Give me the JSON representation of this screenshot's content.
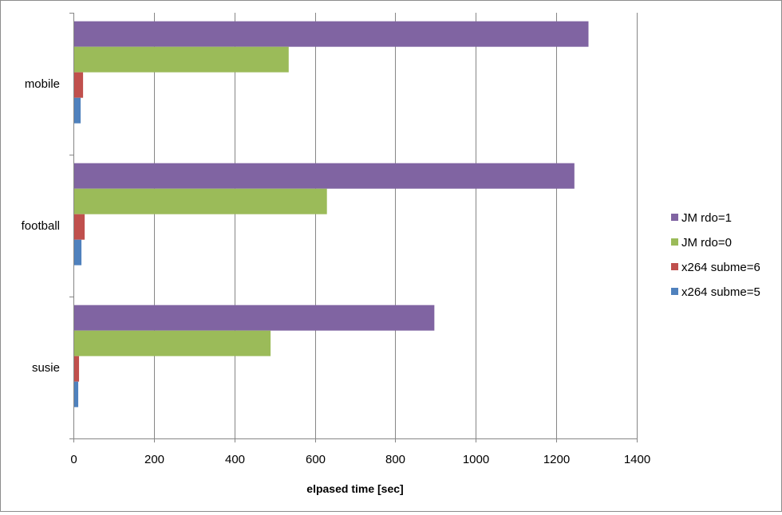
{
  "chart_data": {
    "type": "bar",
    "orientation": "horizontal",
    "categories": [
      "mobile",
      "football",
      "susie"
    ],
    "series": [
      {
        "name": "JM rdo=1",
        "color": "#8064a2",
        "values": [
          1280,
          1245,
          897
        ]
      },
      {
        "name": "JM rdo=0",
        "color": "#9bbb59",
        "values": [
          535,
          630,
          490
        ]
      },
      {
        "name": "x264 subme=6",
        "color": "#c0504d",
        "values": [
          24,
          28,
          14
        ]
      },
      {
        "name": "x264 subme=5",
        "color": "#4f81bd",
        "values": [
          18,
          20,
          12
        ]
      }
    ],
    "xlabel": "elpased time [sec]",
    "ylabel": "",
    "xlim": [
      0,
      1400
    ],
    "xticks": [
      "0",
      "200",
      "400",
      "600",
      "800",
      "1000",
      "1200",
      "1400"
    ],
    "grid": "vertical major gridlines",
    "legend": "right"
  }
}
